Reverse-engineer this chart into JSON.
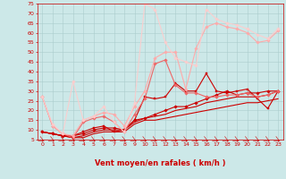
{
  "xlabel": "Vent moyen/en rafales ( km/h )",
  "bg_color": "#cce8e8",
  "grid_color": "#aacccc",
  "xlim": [
    -0.5,
    23.5
  ],
  "ylim": [
    5,
    75
  ],
  "yticks": [
    5,
    10,
    15,
    20,
    25,
    30,
    35,
    40,
    45,
    50,
    55,
    60,
    65,
    70,
    75
  ],
  "xticks": [
    0,
    1,
    2,
    3,
    4,
    5,
    6,
    7,
    8,
    9,
    10,
    11,
    12,
    13,
    14,
    15,
    16,
    17,
    18,
    19,
    20,
    21,
    22,
    23
  ],
  "series": [
    {
      "x": [
        0,
        1,
        2,
        3,
        4,
        5,
        6,
        7,
        8,
        9,
        10,
        11,
        12,
        13,
        14,
        15,
        16,
        17,
        18,
        19,
        20,
        21,
        22,
        23
      ],
      "y": [
        9,
        8,
        7,
        6,
        6,
        8,
        9,
        9,
        9,
        13,
        15,
        15,
        16,
        17,
        18,
        19,
        20,
        21,
        22,
        23,
        24,
        24,
        25,
        26
      ],
      "color": "#cc0000",
      "lw": 0.8,
      "marker": null,
      "ms": 0,
      "alpha": 1.0
    },
    {
      "x": [
        0,
        1,
        2,
        3,
        4,
        5,
        6,
        7,
        8,
        9,
        10,
        11,
        12,
        13,
        14,
        15,
        16,
        17,
        18,
        19,
        20,
        21,
        22,
        23
      ],
      "y": [
        9,
        8,
        7,
        6,
        7,
        9,
        10,
        10,
        10,
        14,
        16,
        17,
        18,
        20,
        21,
        22,
        24,
        25,
        26,
        27,
        27,
        27,
        28,
        30
      ],
      "color": "#cc0000",
      "lw": 0.8,
      "marker": null,
      "ms": 0,
      "alpha": 1.0
    },
    {
      "x": [
        0,
        1,
        2,
        3,
        4,
        5,
        6,
        7,
        8,
        9,
        10,
        11,
        12,
        13,
        14,
        15,
        16,
        17,
        18,
        19,
        20,
        21,
        22,
        23
      ],
      "y": [
        9,
        8,
        7,
        7,
        8,
        10,
        11,
        11,
        10,
        15,
        16,
        18,
        20,
        22,
        22,
        24,
        26,
        28,
        30,
        28,
        29,
        29,
        30,
        30
      ],
      "color": "#cc0000",
      "lw": 0.8,
      "marker": "D",
      "ms": 1.8,
      "alpha": 1.0
    },
    {
      "x": [
        0,
        1,
        2,
        3,
        4,
        5,
        6,
        7,
        8,
        9,
        10,
        11,
        12,
        13,
        14,
        15,
        16,
        17,
        18,
        19,
        20,
        21,
        22,
        23
      ],
      "y": [
        9,
        8,
        7,
        7,
        9,
        11,
        12,
        9,
        10,
        15,
        27,
        26,
        27,
        34,
        30,
        30,
        39,
        30,
        29,
        30,
        31,
        26,
        21,
        30
      ],
      "color": "#cc0000",
      "lw": 0.8,
      "marker": "s",
      "ms": 2.0,
      "alpha": 1.0
    },
    {
      "x": [
        0,
        1,
        2,
        3,
        4,
        5,
        6,
        7,
        8,
        9,
        10,
        11,
        12,
        13,
        14,
        15,
        16,
        17,
        18,
        19,
        20,
        21,
        22,
        23
      ],
      "y": [
        27,
        12,
        8,
        6,
        14,
        16,
        17,
        14,
        9,
        18,
        26,
        44,
        46,
        33,
        29,
        29,
        27,
        27,
        28,
        28,
        29,
        27,
        28,
        30
      ],
      "color": "#ee6666",
      "lw": 0.8,
      "marker": "D",
      "ms": 1.8,
      "alpha": 1.0
    },
    {
      "x": [
        0,
        1,
        2,
        3,
        4,
        5,
        6,
        7,
        8,
        9,
        10,
        11,
        12,
        13,
        14,
        15,
        16,
        17,
        18,
        19,
        20,
        21,
        22,
        23
      ],
      "y": [
        27,
        12,
        8,
        7,
        15,
        17,
        19,
        18,
        12,
        22,
        30,
        47,
        50,
        50,
        31,
        52,
        63,
        65,
        63,
        62,
        60,
        55,
        56,
        61
      ],
      "color": "#ffaaaa",
      "lw": 0.8,
      "marker": "D",
      "ms": 1.8,
      "alpha": 1.0
    },
    {
      "x": [
        0,
        1,
        2,
        3,
        4,
        5,
        6,
        7,
        8,
        9,
        10,
        11,
        12,
        13,
        14,
        15,
        16,
        17,
        18,
        19,
        20,
        21,
        22,
        23
      ],
      "y": [
        27,
        13,
        8,
        35,
        15,
        17,
        22,
        14,
        9,
        24,
        75,
        72,
        55,
        47,
        45,
        43,
        72,
        67,
        65,
        64,
        62,
        59,
        57,
        62
      ],
      "color": "#ffcccc",
      "lw": 0.8,
      "marker": "D",
      "ms": 1.8,
      "alpha": 0.9
    }
  ],
  "arrow_color": "#cc0000",
  "xlabel_color": "#cc0000",
  "xlabel_fontsize": 6,
  "tick_color": "#cc0000",
  "tick_fontsize": 4.5
}
